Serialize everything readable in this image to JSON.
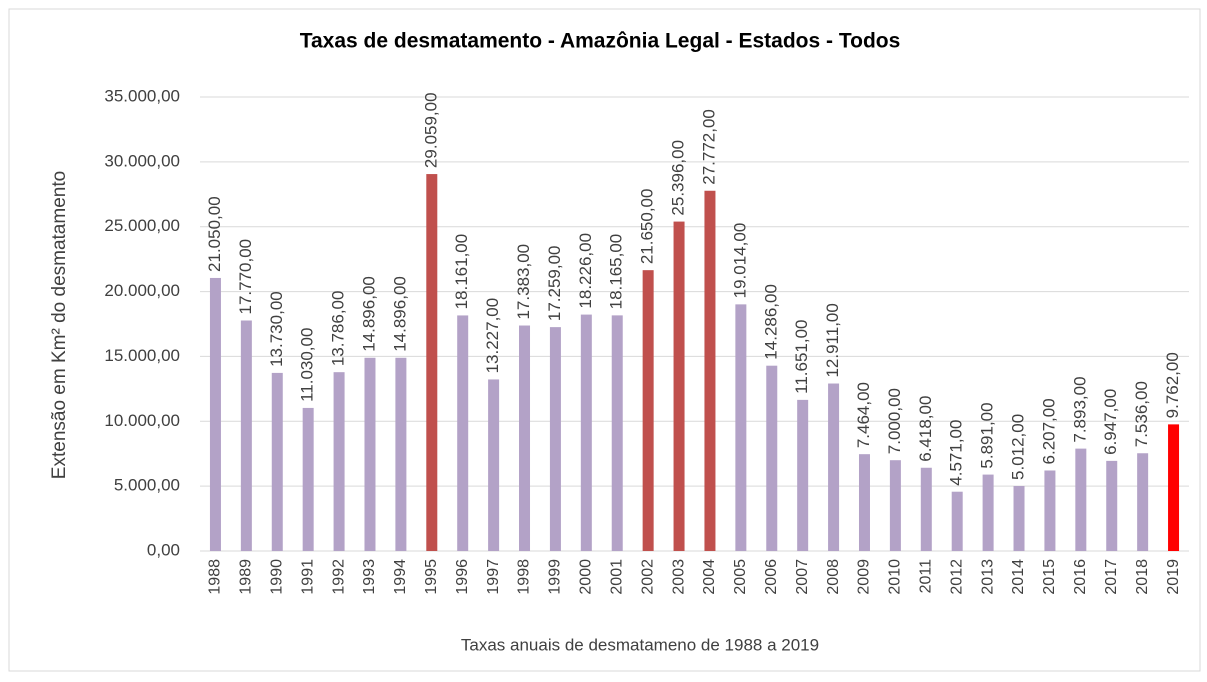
{
  "chart_data": {
    "type": "bar",
    "title": "Taxas de desmatamento - Amazônia Legal - Estados - Todos",
    "x_label": "Taxas anuais de desmatameno de 1988 a 2019",
    "y_label": "Extensão em Km² do desmatamento",
    "categories": [
      "1988",
      "1989",
      "1990",
      "1991",
      "1992",
      "1993",
      "1994",
      "1995",
      "1996",
      "1997",
      "1998",
      "1999",
      "2000",
      "2001",
      "2002",
      "2003",
      "2004",
      "2005",
      "2006",
      "2007",
      "2008",
      "2009",
      "2010",
      "2011",
      "2012",
      "2013",
      "2014",
      "2015",
      "2016",
      "2017",
      "2018",
      "2019"
    ],
    "values": [
      21050,
      17770,
      13730,
      11030,
      13786,
      14896,
      14896,
      29059,
      18161,
      13227,
      17383,
      17259,
      18226,
      18165,
      21650,
      25396,
      27772,
      19014,
      14286,
      11651,
      12911,
      7464,
      7000,
      6418,
      4571,
      5891,
      5012,
      6207,
      7893,
      6947,
      7536,
      9762
    ],
    "value_labels": [
      "21.050,00",
      "17.770,00",
      "13.730,00",
      "11.030,00",
      "13.786,00",
      "14.896,00",
      "14.896,00",
      "29.059,00",
      "18.161,00",
      "13.227,00",
      "17.383,00",
      "17.259,00",
      "18.226,00",
      "18.165,00",
      "21.650,00",
      "25.396,00",
      "27.772,00",
      "19.014,00",
      "14.286,00",
      "11.651,00",
      "12.911,00",
      "7.464,00",
      "7.000,00",
      "6.418,00",
      "4.571,00",
      "5.891,00",
      "5.012,00",
      "6.207,00",
      "7.893,00",
      "6.947,00",
      "7.536,00",
      "9.762,00"
    ],
    "colors": [
      "#b3a2c7",
      "#b3a2c7",
      "#b3a2c7",
      "#b3a2c7",
      "#b3a2c7",
      "#b3a2c7",
      "#b3a2c7",
      "#c0504d",
      "#b3a2c7",
      "#b3a2c7",
      "#b3a2c7",
      "#b3a2c7",
      "#b3a2c7",
      "#b3a2c7",
      "#c0504d",
      "#c0504d",
      "#c0504d",
      "#b3a2c7",
      "#b3a2c7",
      "#b3a2c7",
      "#b3a2c7",
      "#b3a2c7",
      "#b3a2c7",
      "#b3a2c7",
      "#b3a2c7",
      "#b3a2c7",
      "#b3a2c7",
      "#b3a2c7",
      "#b3a2c7",
      "#b3a2c7",
      "#b3a2c7",
      "#ff0000"
    ],
    "ylim": [
      0,
      35000
    ],
    "yticks": [
      {
        "value": 0,
        "label": "0,00"
      },
      {
        "value": 5000,
        "label": "5.000,00"
      },
      {
        "value": 10000,
        "label": "10.000,00"
      },
      {
        "value": 15000,
        "label": "15.000,00"
      },
      {
        "value": 20000,
        "label": "20.000,00"
      },
      {
        "value": 25000,
        "label": "25.000,00"
      },
      {
        "value": 30000,
        "label": "30.000,00"
      },
      {
        "value": 35000,
        "label": "35.000,00"
      }
    ],
    "grid": true
  }
}
